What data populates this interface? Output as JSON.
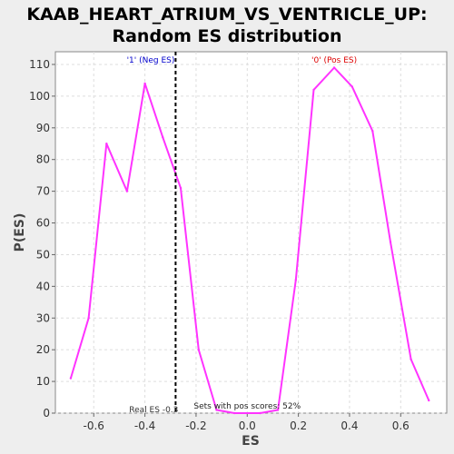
{
  "chart_data": {
    "type": "line",
    "title": "KAAB_HEART_ATRIUM_VS_VENTRICLE_UP:",
    "subtitle": "Random ES distribution",
    "xlabel": "ES",
    "ylabel": "P(ES)",
    "xlim": [
      -0.75,
      0.78
    ],
    "ylim": [
      0,
      114
    ],
    "x_ticks": [
      -0.6,
      -0.4,
      -0.2,
      0.0,
      0.2,
      0.4,
      0.6
    ],
    "x_tick_labels": [
      "-0.6",
      "-0.4",
      "-0.2",
      "0.0",
      "0.2",
      "0.4",
      "0.6"
    ],
    "y_ticks": [
      0,
      10,
      20,
      30,
      40,
      50,
      60,
      70,
      80,
      90,
      100,
      110
    ],
    "y_tick_labels": [
      "0",
      "10",
      "20",
      "30",
      "40",
      "50",
      "60",
      "70",
      "80",
      "90",
      "100",
      "110"
    ],
    "grid": true,
    "series": [
      {
        "color": "#ff33ff",
        "x": [
          -0.69,
          -0.62,
          -0.55,
          -0.47,
          -0.4,
          -0.33,
          -0.26,
          -0.19,
          -0.12,
          -0.05,
          0.05,
          0.12,
          0.19,
          0.26,
          0.34,
          0.41,
          0.49,
          0.56,
          0.64,
          0.71
        ],
        "y": [
          11,
          30,
          85,
          70,
          104,
          87,
          71,
          20,
          1,
          0,
          0,
          1,
          42,
          102,
          109,
          103,
          89,
          54,
          17,
          4
        ]
      }
    ],
    "real_es": {
      "x": -0.28,
      "color": "#000000",
      "label": "Real ES -0.3"
    },
    "annotations": {
      "neg_label": "'1' (Neg ES)",
      "neg_color": "#0000cc",
      "pos_label": "'0' (Pos ES)",
      "pos_color": "#dd0000",
      "pos_scores": "Sets with pos scores: 52%"
    }
  }
}
